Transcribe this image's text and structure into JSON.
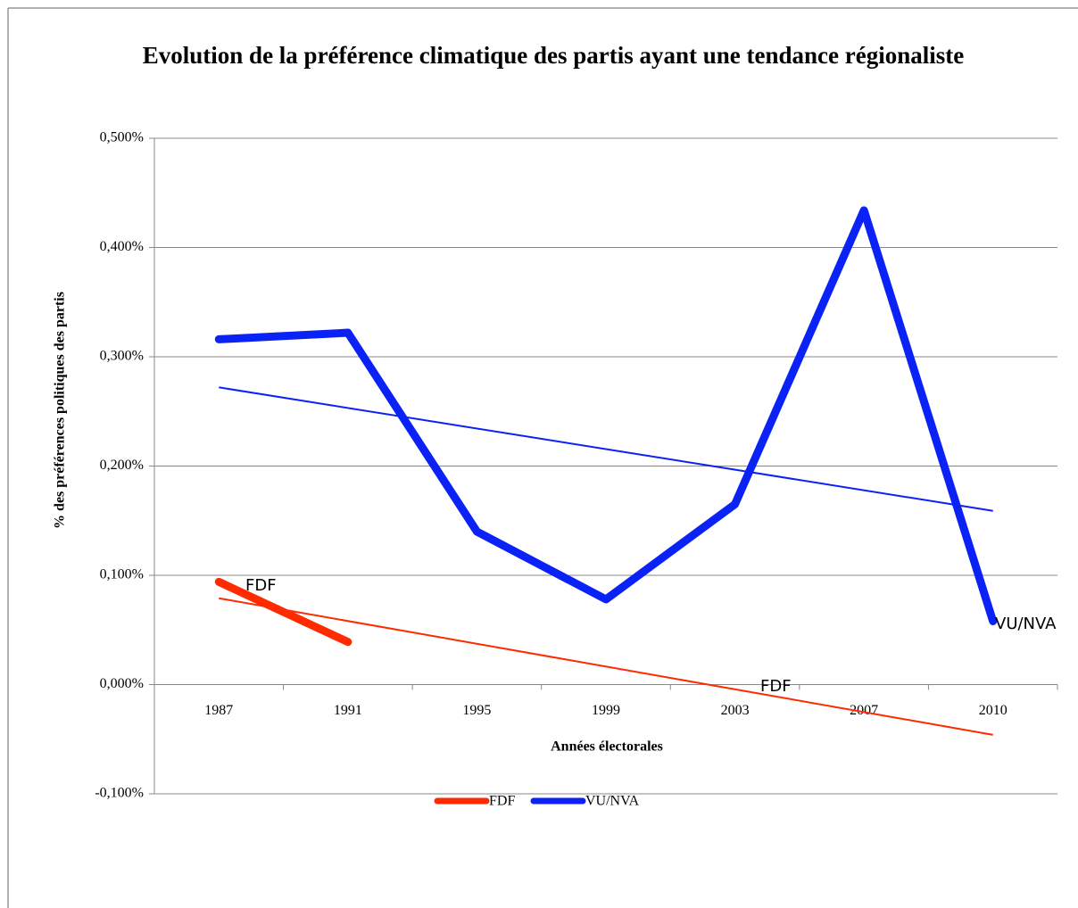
{
  "chart_data": {
    "type": "line",
    "title": "Evolution de la préférence climatique des partis ayant une tendance régionaliste",
    "x_label": "Années électorales",
    "y_label": "% des préférences politiques des partis",
    "categories": [
      "1987",
      "1991",
      "1995",
      "1999",
      "2003",
      "2007",
      "2010"
    ],
    "series": [
      {
        "name": "FDF",
        "color": "#ff2a00",
        "values": [
          0.094,
          0.039,
          null,
          null,
          null,
          null,
          null
        ]
      },
      {
        "name": "VU/NVA",
        "color": "#0a22f5",
        "values": [
          0.316,
          0.322,
          0.14,
          0.078,
          0.165,
          0.434,
          0.058
        ]
      }
    ],
    "trendlines": [
      {
        "color": "#ff2a00",
        "values": [
          0.079,
          -0.046
        ]
      },
      {
        "color": "#0a22f5",
        "values": [
          0.272,
          0.159
        ]
      }
    ],
    "annotations": [
      {
        "text": "FDF"
      },
      {
        "text": "FDF"
      },
      {
        "text": "VU/NVA"
      }
    ],
    "ylim": [
      -0.1,
      0.5
    ],
    "yticks": [
      {
        "value": -0.1,
        "label": "-0,100%"
      },
      {
        "value": 0,
        "label": "0,000%"
      },
      {
        "value": 0.1,
        "label": "0,100%"
      },
      {
        "value": 0.2,
        "label": "0,200%"
      },
      {
        "value": 0.3,
        "label": "0,300%"
      },
      {
        "value": 0.4,
        "label": "0,400%"
      },
      {
        "value": 0.5,
        "label": "0,500%"
      }
    ],
    "grid": true,
    "legend": "bottom"
  }
}
